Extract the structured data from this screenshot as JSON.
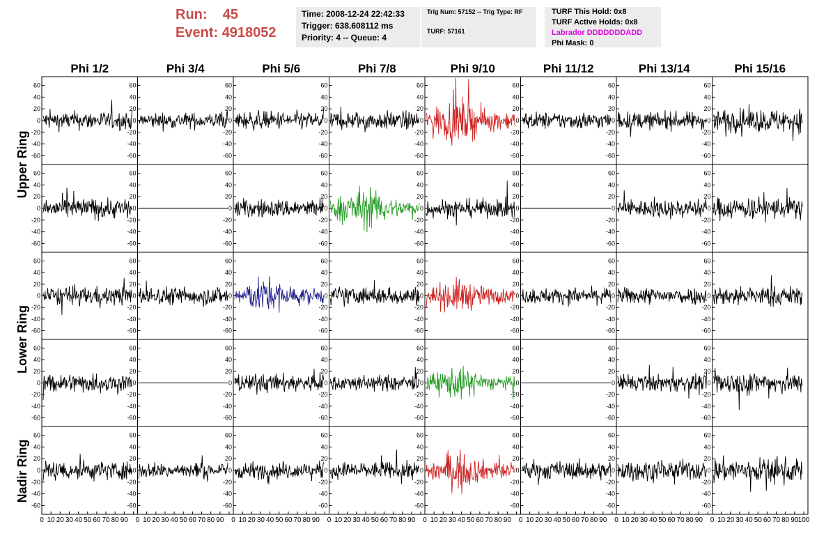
{
  "header": {
    "run_label": "Run:",
    "run_value": "45",
    "event_label": "Event:",
    "event_value": "4918052"
  },
  "info_panel": {
    "time": "Time: 2008-12-24 22:42:33",
    "trigger": "Trigger: 638.608112 ms",
    "priority": "Priority: 4 -- Queue: 4"
  },
  "trig_panel": {
    "trig": "Trig Num: 57152 -- Trig Type: RF",
    "turf": "TURF: 57161"
  },
  "turf_panel": {
    "this_hold": "TURF This Hold: 0x8",
    "active_holds": "TURF Active Holds: 0x8",
    "labrador": "Labrador DDDDDDDADD",
    "phi_mask": "Phi Mask: 0"
  },
  "colors": {
    "run_label": "#c94b4b",
    "labrador": "#e000e0",
    "red": "#cc2222",
    "green": "#229922",
    "blue": "#22228c",
    "black": "#000000"
  },
  "columns": [
    "Phi 1/2",
    "Phi 3/4",
    "Phi 5/6",
    "Phi 7/8",
    "Phi 9/10",
    "Phi 11/12",
    "Phi 13/14",
    "Phi 15/16"
  ],
  "ring_labels": [
    "Upper Ring",
    "Lower Ring",
    "Nadir Ring"
  ],
  "y_ticks": [
    "60",
    "40",
    "20",
    "0",
    "-20",
    "-40",
    "-60"
  ],
  "x_tick_labels": [
    "0",
    "10",
    "20",
    "30",
    "40",
    "50",
    "60",
    "70",
    "80",
    "90",
    "100"
  ],
  "chart_data": {
    "type": "line",
    "ylim": [
      -75,
      75
    ],
    "xlim": [
      0,
      100
    ],
    "rows": 5,
    "cells": [
      {
        "row": 0,
        "col": 0,
        "color": "black",
        "amp": 14
      },
      {
        "row": 0,
        "col": 1,
        "color": "black",
        "amp": 12
      },
      {
        "row": 0,
        "col": 2,
        "color": "black",
        "amp": 14
      },
      {
        "row": 0,
        "col": 3,
        "color": "black",
        "amp": 14
      },
      {
        "row": 0,
        "col": 4,
        "color": "red",
        "amp": 22
      },
      {
        "row": 0,
        "col": 5,
        "color": "black",
        "amp": 13
      },
      {
        "row": 0,
        "col": 6,
        "color": "black",
        "amp": 13
      },
      {
        "row": 0,
        "col": 7,
        "color": "black",
        "amp": 18
      },
      {
        "row": 1,
        "col": 0,
        "color": "black",
        "amp": 16
      },
      {
        "row": 1,
        "col": 1,
        "color": "black",
        "amp": 0
      },
      {
        "row": 1,
        "col": 2,
        "color": "black",
        "amp": 14
      },
      {
        "row": 1,
        "col": 3,
        "color": "green",
        "amp": 20
      },
      {
        "row": 1,
        "col": 4,
        "color": "black",
        "amp": 14
      },
      {
        "row": 1,
        "col": 5,
        "color": "black",
        "amp": 0
      },
      {
        "row": 1,
        "col": 6,
        "color": "black",
        "amp": 14
      },
      {
        "row": 1,
        "col": 7,
        "color": "black",
        "amp": 17
      },
      {
        "row": 2,
        "col": 0,
        "color": "black",
        "amp": 14
      },
      {
        "row": 2,
        "col": 1,
        "color": "black",
        "amp": 14
      },
      {
        "row": 2,
        "col": 2,
        "color": "blue",
        "amp": 18
      },
      {
        "row": 2,
        "col": 3,
        "color": "black",
        "amp": 14
      },
      {
        "row": 2,
        "col": 4,
        "color": "red",
        "amp": 17
      },
      {
        "row": 2,
        "col": 5,
        "color": "black",
        "amp": 12
      },
      {
        "row": 2,
        "col": 6,
        "color": "black",
        "amp": 13
      },
      {
        "row": 2,
        "col": 7,
        "color": "black",
        "amp": 15
      },
      {
        "row": 3,
        "col": 0,
        "color": "black",
        "amp": 15
      },
      {
        "row": 3,
        "col": 1,
        "color": "black",
        "amp": 0
      },
      {
        "row": 3,
        "col": 2,
        "color": "black",
        "amp": 14
      },
      {
        "row": 3,
        "col": 3,
        "color": "black",
        "amp": 12
      },
      {
        "row": 3,
        "col": 4,
        "color": "green",
        "amp": 16
      },
      {
        "row": 3,
        "col": 5,
        "color": "black",
        "amp": 0
      },
      {
        "row": 3,
        "col": 6,
        "color": "black",
        "amp": 13
      },
      {
        "row": 3,
        "col": 7,
        "color": "black",
        "amp": 18
      },
      {
        "row": 4,
        "col": 0,
        "color": "black",
        "amp": 15
      },
      {
        "row": 4,
        "col": 1,
        "color": "black",
        "amp": 12
      },
      {
        "row": 4,
        "col": 2,
        "color": "black",
        "amp": 13
      },
      {
        "row": 4,
        "col": 3,
        "color": "black",
        "amp": 13
      },
      {
        "row": 4,
        "col": 4,
        "color": "red",
        "amp": 18
      },
      {
        "row": 4,
        "col": 5,
        "color": "black",
        "amp": 14
      },
      {
        "row": 4,
        "col": 6,
        "color": "black",
        "amp": 15
      },
      {
        "row": 4,
        "col": 7,
        "color": "black",
        "amp": 19
      }
    ]
  }
}
